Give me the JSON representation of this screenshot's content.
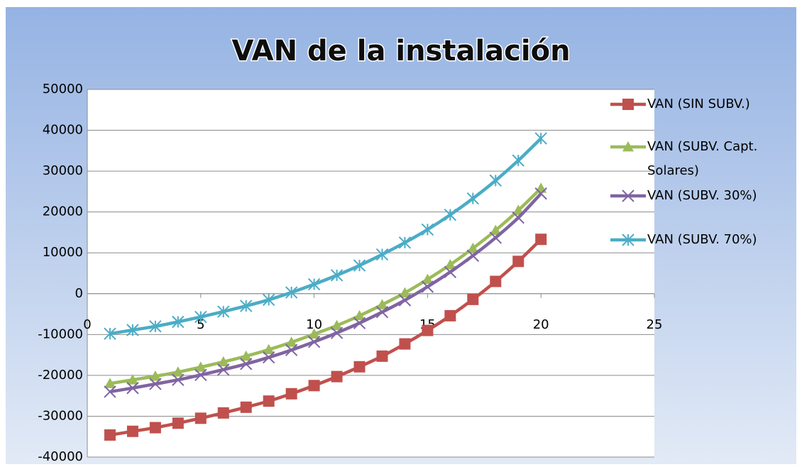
{
  "chart_data": {
    "type": "line",
    "title": "VAN de la instalación",
    "x": [
      1,
      2,
      3,
      4,
      5,
      6,
      7,
      8,
      9,
      10,
      11,
      12,
      13,
      14,
      15,
      16,
      17,
      18,
      19,
      20
    ],
    "series": [
      {
        "name": "VAN (SIN SUBV.)",
        "color": "#c0504d",
        "marker": "square",
        "values": [
          -34600,
          -33700,
          -32800,
          -31700,
          -30500,
          -29200,
          -27800,
          -26300,
          -24500,
          -22500,
          -20300,
          -17900,
          -15300,
          -12300,
          -9000,
          -5400,
          -1400,
          3000,
          7900,
          13300
        ]
      },
      {
        "name": "VAN (SUBV. Capt. Solares)",
        "color": "#9bbb59",
        "marker": "triangle",
        "values": [
          -22000,
          -21100,
          -20200,
          -19200,
          -18000,
          -16700,
          -15300,
          -13700,
          -11900,
          -9900,
          -7800,
          -5400,
          -2700,
          200,
          3500,
          7100,
          11100,
          15500,
          20400,
          25800
        ]
      },
      {
        "name": "VAN (SUBV. 30%)",
        "color": "#8064a2",
        "marker": "x",
        "values": [
          -24000,
          -23100,
          -22100,
          -21100,
          -19900,
          -18600,
          -17200,
          -15600,
          -13800,
          -11800,
          -9600,
          -7200,
          -4500,
          -1600,
          1700,
          5300,
          9300,
          13700,
          18600,
          24500
        ]
      },
      {
        "name": "VAN (SUBV. 70%)",
        "color": "#4bacc6",
        "marker": "star",
        "values": [
          -9800,
          -8900,
          -8000,
          -6900,
          -5700,
          -4400,
          -3000,
          -1500,
          300,
          2300,
          4500,
          6900,
          9600,
          12500,
          15700,
          19300,
          23300,
          27700,
          32600,
          38000
        ]
      }
    ],
    "xlim": [
      0,
      25
    ],
    "xticks": [
      0,
      5,
      10,
      15,
      20,
      25
    ],
    "ylim": [
      -40000,
      50000
    ],
    "yticks": [
      -40000,
      -30000,
      -20000,
      -10000,
      0,
      10000,
      20000,
      30000,
      40000,
      50000
    ],
    "grid": true,
    "legend": "right"
  }
}
